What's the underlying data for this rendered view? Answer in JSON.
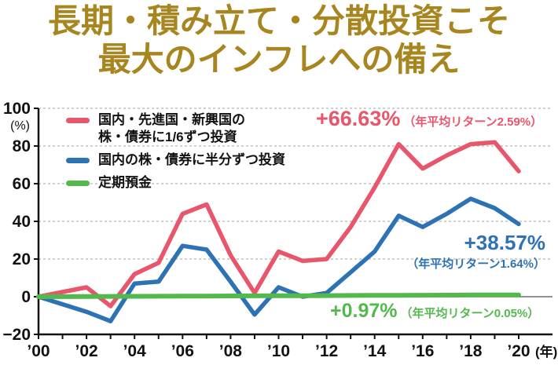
{
  "title": {
    "line1": "長期・積み立て・分散投資こそ",
    "line2": "最大のインフレへの備え"
  },
  "colors": {
    "gold": "#a8861f",
    "red": "#e8566b",
    "blue": "#2d72b5",
    "green": "#53b94e",
    "grid": "#b5b5b5",
    "axis": "#121212"
  },
  "legend": {
    "items": [
      {
        "name": "diversified-one-sixth",
        "color": "#e8566b",
        "lines": [
          "国内・先進国・新興国の",
          "株・債券に1/6ずつ投資"
        ]
      },
      {
        "name": "domestic-half-half",
        "color": "#2d72b5",
        "lines": [
          "国内の株・債券に半分ずつ投資"
        ]
      },
      {
        "name": "time-deposit",
        "color": "#53b94e",
        "lines": [
          "定期預金"
        ]
      }
    ]
  },
  "annotations": {
    "red": {
      "value": "+66.63%",
      "note": "（年平均リターン2.59%）"
    },
    "blue": {
      "value": "+38.57%",
      "note": "（年平均リターン1.64%）"
    },
    "green": {
      "value": "+0.97%",
      "note": "（年平均リターン0.05%）"
    }
  },
  "chart_data": {
    "type": "line",
    "x": [
      2000,
      2001,
      2002,
      2003,
      2004,
      2005,
      2006,
      2007,
      2008,
      2009,
      2010,
      2011,
      2012,
      2013,
      2014,
      2015,
      2016,
      2017,
      2018,
      2019,
      2020
    ],
    "series": [
      {
        "name": "国内・先進国・新興国の株・債券に1/6ずつ投資",
        "color": "#e8566b",
        "width": 5.5,
        "final_return_pct": 66.63,
        "annual_avg_return_pct": 2.59,
        "values": [
          0,
          2.5,
          5,
          -5,
          12,
          18,
          44,
          49,
          22,
          2,
          24,
          19,
          20,
          37,
          58,
          81,
          68,
          75,
          81,
          82,
          66.63
        ]
      },
      {
        "name": "国内の株・債券に半分ずつ投資",
        "color": "#2d72b5",
        "width": 5.5,
        "final_return_pct": 38.57,
        "annual_avg_return_pct": 1.64,
        "values": [
          0,
          -4,
          -8,
          -13,
          7,
          8,
          27,
          25,
          8,
          -9.5,
          5,
          0,
          2,
          13,
          24,
          43,
          37,
          44,
          52,
          47,
          38.57
        ]
      },
      {
        "name": "定期預金",
        "color": "#53b94e",
        "width": 6,
        "final_return_pct": 0.97,
        "annual_avg_return_pct": 0.05,
        "values": [
          0,
          0.05,
          0.1,
          0.15,
          0.2,
          0.25,
          0.3,
          0.35,
          0.4,
          0.45,
          0.5,
          0.55,
          0.6,
          0.65,
          0.7,
          0.75,
          0.8,
          0.85,
          0.9,
          0.95,
          0.97
        ]
      }
    ],
    "ylim": [
      -20,
      100
    ],
    "yticks": [
      100,
      80,
      60,
      40,
      20,
      0,
      -20
    ],
    "ytick_labels": [
      "100",
      "80",
      "60",
      "40",
      "20",
      "0",
      "−20"
    ],
    "y_unit": "(%)",
    "xtick_labels": [
      "’00",
      "’02",
      "’04",
      "’06",
      "’08",
      "’10",
      "’12",
      "’14",
      "’16",
      "’18",
      "’20"
    ],
    "x_axis_suffix": "(年)",
    "grid": "horizontal dashed at 20..100, solid thin line at 0, solid axis at -20"
  }
}
